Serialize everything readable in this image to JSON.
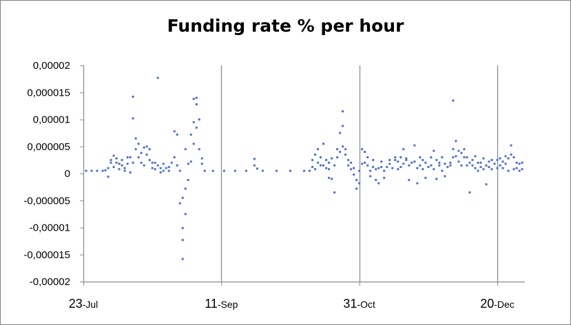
{
  "chart_data": {
    "type": "scatter",
    "title": "Funding rate % per hour",
    "xlabel": "",
    "ylabel": "",
    "x_range": [
      "2017-07-23",
      "2018-01-10"
    ],
    "ylim": [
      -2e-05,
      2e-05
    ],
    "y_ticks": [
      2e-05,
      1.5e-05,
      1e-05,
      5e-06,
      0,
      -5e-06,
      -1e-05,
      -1.5e-05,
      -2e-05
    ],
    "y_tick_labels": [
      "0,00002",
      "0,000015",
      "0,00001",
      "0,000005",
      "0",
      "-0,000005",
      "-0,00001",
      "-0,000015",
      "-0,00002"
    ],
    "x_ticks": [
      {
        "date": "2017-07-23",
        "day": "23",
        "month": "-Jul"
      },
      {
        "date": "2017-09-11",
        "day": "11",
        "month": "-Sep"
      },
      {
        "date": "2017-10-31",
        "day": "31",
        "month": "-Oct"
      },
      {
        "date": "2017-12-20",
        "day": "20",
        "month": "-Dec"
      }
    ],
    "grid": {
      "x": true,
      "y": false
    },
    "marker_color": "#4f6fc4",
    "series": [
      {
        "points": [
          [
            "2017-07-24",
            5e-07
          ],
          [
            "2017-07-26",
            5e-07
          ],
          [
            "2017-07-28",
            5e-07
          ],
          [
            "2017-07-30",
            5e-07
          ],
          [
            "2017-07-31",
            6e-07
          ],
          [
            "2017-08-01",
            -6e-07
          ],
          [
            "2017-08-01",
            1e-06
          ],
          [
            "2017-08-02",
            2e-06
          ],
          [
            "2017-08-02",
            2.5e-06
          ],
          [
            "2017-08-03",
            1.2e-06
          ],
          [
            "2017-08-03",
            3.3e-06
          ],
          [
            "2017-08-04",
            2e-06
          ],
          [
            "2017-08-04",
            2.8e-06
          ],
          [
            "2017-08-05",
            8e-07
          ],
          [
            "2017-08-05",
            1.8e-06
          ],
          [
            "2017-08-06",
            1.5e-06
          ],
          [
            "2017-08-06",
            2.5e-06
          ],
          [
            "2017-08-07",
            5e-07
          ],
          [
            "2017-08-07",
            1e-06
          ],
          [
            "2017-08-08",
            1.8e-06
          ],
          [
            "2017-08-08",
            3e-06
          ],
          [
            "2017-08-09",
            2e-07
          ],
          [
            "2017-08-09",
            3e-06
          ],
          [
            "2017-08-10",
            1.42e-05
          ],
          [
            "2017-08-10",
            1.02e-05
          ],
          [
            "2017-08-10",
            2e-06
          ],
          [
            "2017-08-11",
            6.5e-06
          ],
          [
            "2017-08-11",
            4.5e-06
          ],
          [
            "2017-08-12",
            3e-06
          ],
          [
            "2017-08-12",
            5.5e-06
          ],
          [
            "2017-08-13",
            3.8e-06
          ],
          [
            "2017-08-13",
            2e-06
          ],
          [
            "2017-08-14",
            4.8e-06
          ],
          [
            "2017-08-14",
            1.5e-06
          ],
          [
            "2017-08-15",
            3.5e-06
          ],
          [
            "2017-08-15",
            5e-06
          ],
          [
            "2017-08-16",
            2.5e-06
          ],
          [
            "2017-08-16",
            4.5e-06
          ],
          [
            "2017-08-17",
            2e-06
          ],
          [
            "2017-08-17",
            1e-06
          ],
          [
            "2017-08-18",
            8e-07
          ],
          [
            "2017-08-18",
            2e-06
          ],
          [
            "2017-08-19",
            1.77e-05
          ],
          [
            "2017-08-19",
            1.5e-06
          ],
          [
            "2017-08-20",
            1e-06
          ],
          [
            "2017-08-20",
            2e-07
          ],
          [
            "2017-08-21",
            1.8e-06
          ],
          [
            "2017-08-21",
            5e-07
          ],
          [
            "2017-08-22",
            1e-06
          ],
          [
            "2017-08-23",
            1.2e-06
          ],
          [
            "2017-08-23",
            5e-07
          ],
          [
            "2017-08-24",
            2e-06
          ],
          [
            "2017-08-25",
            7.8e-06
          ],
          [
            "2017-08-25",
            3e-06
          ],
          [
            "2017-08-26",
            7.2e-06
          ],
          [
            "2017-08-26",
            1.5e-06
          ],
          [
            "2017-08-27",
            5e-07
          ],
          [
            "2017-08-27",
            -5.5e-06
          ],
          [
            "2017-08-28",
            -1.01e-05
          ],
          [
            "2017-08-28",
            -1.23e-05
          ],
          [
            "2017-08-28",
            -1.58e-05
          ],
          [
            "2017-08-28",
            -4.5e-06
          ],
          [
            "2017-08-29",
            -7.5e-06
          ],
          [
            "2017-08-29",
            -2.8e-06
          ],
          [
            "2017-08-29",
            4.5e-06
          ],
          [
            "2017-08-30",
            1.8e-06
          ],
          [
            "2017-08-30",
            -1.2e-06
          ],
          [
            "2017-08-31",
            2.2e-06
          ],
          [
            "2017-08-31",
            7.2e-06
          ],
          [
            "2017-09-01",
            9.5e-06
          ],
          [
            "2017-09-01",
            1.38e-05
          ],
          [
            "2017-09-01",
            5.5e-06
          ],
          [
            "2017-09-02",
            1.28e-05
          ],
          [
            "2017-09-02",
            1.4e-05
          ],
          [
            "2017-09-02",
            8.5e-06
          ],
          [
            "2017-09-03",
            1e-05
          ],
          [
            "2017-09-03",
            4.5e-06
          ],
          [
            "2017-09-04",
            1.8e-06
          ],
          [
            "2017-09-04",
            2.8e-06
          ],
          [
            "2017-09-05",
            5e-07
          ],
          [
            "2017-09-08",
            5e-07
          ],
          [
            "2017-09-12",
            5e-07
          ],
          [
            "2017-09-16",
            5e-07
          ],
          [
            "2017-09-20",
            5e-07
          ],
          [
            "2017-09-23",
            2.7e-06
          ],
          [
            "2017-09-23",
            1.5e-06
          ],
          [
            "2017-09-24",
            9e-07
          ],
          [
            "2017-09-26",
            5e-07
          ],
          [
            "2017-10-01",
            5e-07
          ],
          [
            "2017-10-06",
            5e-07
          ],
          [
            "2017-10-11",
            5e-07
          ],
          [
            "2017-10-13",
            5e-07
          ],
          [
            "2017-10-14",
            1.2e-06
          ],
          [
            "2017-10-14",
            2.5e-06
          ],
          [
            "2017-10-15",
            3.5e-06
          ],
          [
            "2017-10-15",
            8e-07
          ],
          [
            "2017-10-16",
            4.5e-06
          ],
          [
            "2017-10-16",
            2e-06
          ],
          [
            "2017-10-17",
            1.5e-06
          ],
          [
            "2017-10-17",
            3e-06
          ],
          [
            "2017-10-18",
            5.5e-06
          ],
          [
            "2017-10-18",
            1.5e-06
          ],
          [
            "2017-10-19",
            1e-06
          ],
          [
            "2017-10-19",
            2.5e-06
          ],
          [
            "2017-10-20",
            2e-06
          ],
          [
            "2017-10-20",
            8e-07
          ],
          [
            "2017-10-20",
            -8e-07
          ],
          [
            "2017-10-21",
            2.8e-06
          ],
          [
            "2017-10-21",
            -1e-06
          ],
          [
            "2017-10-22",
            -3.5e-06
          ],
          [
            "2017-10-22",
            1.5e-06
          ],
          [
            "2017-10-23",
            3e-06
          ],
          [
            "2017-10-23",
            4.5e-06
          ],
          [
            "2017-10-24",
            7.5e-06
          ],
          [
            "2017-10-24",
            4e-06
          ],
          [
            "2017-10-25",
            1.15e-05
          ],
          [
            "2017-10-25",
            8.8e-06
          ],
          [
            "2017-10-25",
            5e-06
          ],
          [
            "2017-10-26",
            3.5e-06
          ],
          [
            "2017-10-26",
            4.5e-06
          ],
          [
            "2017-10-27",
            2.5e-06
          ],
          [
            "2017-10-27",
            1.5e-06
          ],
          [
            "2017-10-28",
            2e-06
          ],
          [
            "2017-10-28",
            8e-07
          ],
          [
            "2017-10-29",
            -2e-07
          ],
          [
            "2017-10-29",
            1e-06
          ],
          [
            "2017-10-30",
            -1.2e-06
          ],
          [
            "2017-10-30",
            -2.8e-06
          ],
          [
            "2017-10-31",
            -1.8e-06
          ],
          [
            "2017-10-31",
            5e-07
          ],
          [
            "2017-11-01",
            4.5e-06
          ],
          [
            "2017-11-01",
            1.8e-06
          ],
          [
            "2017-11-02",
            2e-06
          ],
          [
            "2017-11-02",
            4e-06
          ],
          [
            "2017-11-03",
            1.5e-06
          ],
          [
            "2017-11-03",
            3e-06
          ],
          [
            "2017-11-04",
            5e-07
          ],
          [
            "2017-11-04",
            -5e-07
          ],
          [
            "2017-11-05",
            2.5e-06
          ],
          [
            "2017-11-05",
            1.2e-06
          ],
          [
            "2017-11-06",
            -1.2e-06
          ],
          [
            "2017-11-06",
            8e-07
          ],
          [
            "2017-11-07",
            -1.8e-06
          ],
          [
            "2017-11-07",
            1e-06
          ],
          [
            "2017-11-08",
            2.2e-06
          ],
          [
            "2017-11-08",
            1.2e-06
          ],
          [
            "2017-11-09",
            -8e-07
          ],
          [
            "2017-11-09",
            5e-07
          ],
          [
            "2017-11-10",
            1.2e-06
          ],
          [
            "2017-11-11",
            2.5e-06
          ],
          [
            "2017-11-11",
            1.8e-06
          ],
          [
            "2017-11-12",
            1e-06
          ],
          [
            "2017-11-13",
            2.5e-06
          ],
          [
            "2017-11-13",
            3e-06
          ],
          [
            "2017-11-14",
            2.2e-06
          ],
          [
            "2017-11-14",
            8e-07
          ],
          [
            "2017-11-15",
            3e-06
          ],
          [
            "2017-11-15",
            1.2e-06
          ],
          [
            "2017-11-16",
            4.5e-06
          ],
          [
            "2017-11-16",
            1.8e-06
          ],
          [
            "2017-11-17",
            2.5e-06
          ],
          [
            "2017-11-17",
            2.8e-06
          ],
          [
            "2017-11-18",
            -1.2e-06
          ],
          [
            "2017-11-18",
            1.5e-06
          ],
          [
            "2017-11-19",
            2e-06
          ],
          [
            "2017-11-20",
            5.2e-06
          ],
          [
            "2017-11-20",
            2.2e-06
          ],
          [
            "2017-11-21",
            1e-06
          ],
          [
            "2017-11-21",
            -1.8e-06
          ],
          [
            "2017-11-22",
            1.5e-06
          ],
          [
            "2017-11-22",
            3e-06
          ],
          [
            "2017-11-23",
            2.5e-06
          ],
          [
            "2017-11-23",
            8e-07
          ],
          [
            "2017-11-24",
            2e-06
          ],
          [
            "2017-11-24",
            -8e-07
          ],
          [
            "2017-11-25",
            1.2e-06
          ],
          [
            "2017-11-26",
            3e-06
          ],
          [
            "2017-11-26",
            1.5e-06
          ],
          [
            "2017-11-27",
            4.2e-06
          ],
          [
            "2017-11-27",
            8e-07
          ],
          [
            "2017-11-28",
            2.5e-06
          ],
          [
            "2017-11-28",
            -1e-06
          ],
          [
            "2017-11-29",
            1.5e-06
          ],
          [
            "2017-11-29",
            2e-06
          ],
          [
            "2017-11-30",
            5e-07
          ],
          [
            "2017-11-30",
            3e-06
          ],
          [
            "2017-12-01",
            -5e-07
          ],
          [
            "2017-12-01",
            1.8e-06
          ],
          [
            "2017-12-02",
            1.2e-06
          ],
          [
            "2017-12-03",
            1.5e-06
          ],
          [
            "2017-12-03",
            2e-06
          ],
          [
            "2017-12-04",
            1.35e-05
          ],
          [
            "2017-12-04",
            4.5e-06
          ],
          [
            "2017-12-04",
            3e-06
          ],
          [
            "2017-12-05",
            6e-06
          ],
          [
            "2017-12-05",
            3.2e-06
          ],
          [
            "2017-12-06",
            4.2e-06
          ],
          [
            "2017-12-06",
            2.2e-06
          ],
          [
            "2017-12-07",
            3.8e-06
          ],
          [
            "2017-12-07",
            1.5e-06
          ],
          [
            "2017-12-08",
            3e-06
          ],
          [
            "2017-12-08",
            4.5e-06
          ],
          [
            "2017-12-09",
            3e-06
          ],
          [
            "2017-12-09",
            1.5e-06
          ],
          [
            "2017-12-10",
            -3.5e-06
          ],
          [
            "2017-12-10",
            2e-06
          ],
          [
            "2017-12-11",
            2.5e-06
          ],
          [
            "2017-12-11",
            1.5e-06
          ],
          [
            "2017-12-12",
            3.2e-06
          ],
          [
            "2017-12-12",
            1e-06
          ],
          [
            "2017-12-13",
            5e-07
          ],
          [
            "2017-12-13",
            2e-06
          ],
          [
            "2017-12-14",
            1.2e-06
          ],
          [
            "2017-12-14",
            2e-06
          ],
          [
            "2017-12-15",
            8e-07
          ],
          [
            "2017-12-15",
            2.8e-06
          ],
          [
            "2017-12-16",
            -2e-06
          ],
          [
            "2017-12-16",
            1.5e-06
          ],
          [
            "2017-12-17",
            2.2e-06
          ],
          [
            "2017-12-17",
            1.2e-06
          ],
          [
            "2017-12-18",
            2.5e-06
          ],
          [
            "2017-12-18",
            8e-07
          ],
          [
            "2017-12-19",
            1.8e-06
          ],
          [
            "2017-12-20",
            2.5e-06
          ],
          [
            "2017-12-20",
            1e-06
          ],
          [
            "2017-12-21",
            2.8e-06
          ],
          [
            "2017-12-21",
            1.5e-06
          ],
          [
            "2017-12-22",
            2.2e-06
          ],
          [
            "2017-12-22",
            1e-06
          ],
          [
            "2017-12-23",
            3.2e-06
          ],
          [
            "2017-12-23",
            1.8e-06
          ],
          [
            "2017-12-24",
            2.8e-06
          ],
          [
            "2017-12-24",
            5e-07
          ],
          [
            "2017-12-25",
            5.2e-06
          ],
          [
            "2017-12-25",
            3.5e-06
          ],
          [
            "2017-12-26",
            3e-06
          ],
          [
            "2017-12-26",
            8e-07
          ],
          [
            "2017-12-27",
            2e-06
          ],
          [
            "2017-12-27",
            1e-06
          ],
          [
            "2017-12-28",
            1.8e-06
          ],
          [
            "2017-12-28",
            5e-07
          ],
          [
            "2017-12-29",
            8e-07
          ],
          [
            "2017-12-29",
            2e-06
          ]
        ]
      }
    ]
  }
}
